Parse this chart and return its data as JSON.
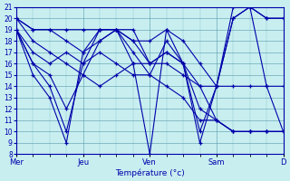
{
  "title": "",
  "xlabel": "Température (°c)",
  "ylabel": "",
  "background_color": "#c8eef0",
  "line_color": "#0000aa",
  "grid_color": "#5599aa",
  "ylim": [
    8,
    21
  ],
  "yticks": [
    8,
    9,
    10,
    11,
    12,
    13,
    14,
    15,
    16,
    17,
    18,
    19,
    20,
    21
  ],
  "day_labels": [
    "Mer",
    "Jeu",
    "Ven",
    "Sam",
    "D"
  ],
  "day_positions": [
    0,
    24,
    48,
    72,
    96
  ],
  "series": [
    {
      "x": [
        0,
        6,
        12,
        18,
        24,
        30,
        36,
        42,
        48,
        54,
        60,
        66,
        72,
        78,
        84,
        90,
        96
      ],
      "y": [
        20,
        19,
        19,
        19,
        19,
        19,
        19,
        19,
        16,
        16,
        15,
        14,
        14,
        14,
        14,
        14,
        14
      ]
    },
    {
      "x": [
        0,
        6,
        12,
        18,
        24,
        30,
        36,
        42,
        48,
        54,
        60,
        66,
        72,
        78,
        84,
        90,
        96
      ],
      "y": [
        20,
        18,
        17,
        16,
        15,
        14,
        15,
        16,
        16,
        17,
        16,
        14,
        11,
        10,
        10,
        10,
        10
      ]
    },
    {
      "x": [
        0,
        6,
        12,
        18,
        24,
        30,
        36,
        42,
        48,
        54,
        60,
        66,
        72,
        78,
        84,
        90,
        96
      ],
      "y": [
        19,
        16,
        15,
        12,
        15,
        18,
        19,
        18,
        16,
        17,
        16,
        12,
        11,
        10,
        10,
        10,
        10
      ]
    },
    {
      "x": [
        0,
        6,
        12,
        18,
        24,
        30,
        36,
        42,
        48,
        54,
        60,
        66,
        72,
        78,
        84,
        90,
        96
      ],
      "y": [
        19,
        16,
        14,
        10,
        16,
        19,
        19,
        17,
        15,
        18,
        16,
        10,
        14,
        20,
        21,
        20,
        20
      ]
    },
    {
      "x": [
        0,
        6,
        12,
        18,
        24,
        30,
        36,
        42,
        48,
        54,
        60,
        66,
        72,
        78,
        84,
        90,
        96
      ],
      "y": [
        19,
        15,
        13,
        9,
        17,
        19,
        19,
        16,
        8,
        19,
        16,
        9,
        14,
        21,
        21,
        14,
        10
      ]
    },
    {
      "x": [
        0,
        6,
        12,
        18,
        24,
        30,
        36,
        42,
        48,
        54,
        60,
        66,
        72,
        78,
        84,
        90,
        96
      ],
      "y": [
        19,
        17,
        16,
        17,
        16,
        17,
        16,
        15,
        15,
        14,
        13,
        11,
        11,
        10,
        10,
        10,
        10
      ]
    },
    {
      "x": [
        0,
        6,
        12,
        18,
        24,
        30,
        36,
        42,
        48,
        54,
        60,
        66,
        72,
        78,
        84,
        90,
        96
      ],
      "y": [
        20,
        19,
        19,
        18,
        17,
        18,
        19,
        18,
        18,
        19,
        18,
        16,
        14,
        20,
        21,
        20,
        20
      ]
    }
  ]
}
